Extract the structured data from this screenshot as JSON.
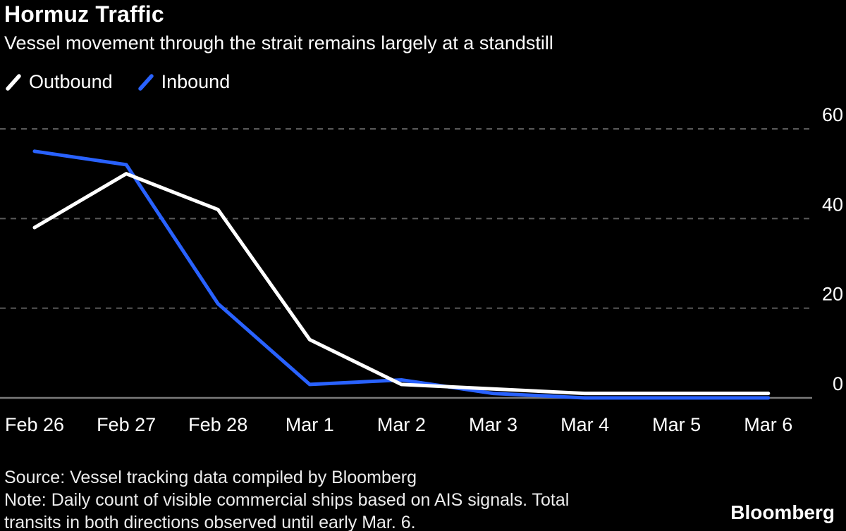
{
  "header": {
    "title": "Hormuz Traffic",
    "subtitle": "Vessel movement through the strait remains largely at a standstill"
  },
  "legend": [
    {
      "label": "Outbound",
      "color": "#ffffff"
    },
    {
      "label": "Inbound",
      "color": "#2962ff"
    }
  ],
  "chart_data": {
    "type": "line",
    "x": [
      "Feb 26",
      "Feb 27",
      "Feb 28",
      "Mar 1",
      "Mar 2",
      "Mar 3",
      "Mar 4",
      "Mar 5",
      "Mar 6"
    ],
    "series": [
      {
        "name": "Outbound",
        "color": "#ffffff",
        "values": [
          38,
          50,
          42,
          13,
          3,
          2,
          1,
          1,
          1
        ]
      },
      {
        "name": "Inbound",
        "color": "#2962ff",
        "values": [
          55,
          52,
          21,
          3,
          4,
          1,
          0,
          0,
          0
        ]
      }
    ],
    "y_ticks": [
      0,
      20,
      40,
      60
    ],
    "ylim": [
      0,
      60
    ],
    "y_axis_side": "right",
    "grid": "dashed-horizontal",
    "gridline_color": "#5a5a5a",
    "axis_line_color": "#7a7a7a",
    "background_color": "#000000"
  },
  "footer": {
    "source": "Source: Vessel tracking data compiled by Bloomberg",
    "note_lines": [
      "Note: Daily count of visible commercial ships based on AIS signals. Total",
      "transits in both directions observed until early Mar. 6."
    ],
    "brand": "Bloomberg"
  }
}
